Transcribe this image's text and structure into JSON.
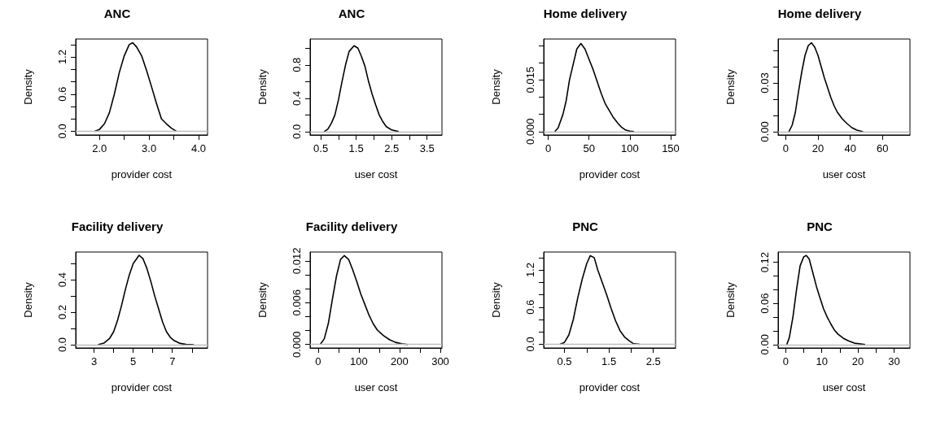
{
  "chart_data": [
    {
      "type": "line",
      "title": "ANC",
      "xlabel": "provider cost",
      "ylabel": "Density",
      "xlim": [
        1.52,
        4.18
      ],
      "ylim": [
        -0.06,
        1.49
      ],
      "xticks": [
        {
          "value": 2,
          "label": "2.0"
        },
        {
          "value": 2.5,
          "label": null
        },
        {
          "value": 3,
          "label": "3.0"
        },
        {
          "value": 3.5,
          "label": null
        },
        {
          "value": 4,
          "label": "4.0"
        }
      ],
      "yticks": [
        {
          "value": 0,
          "label": "0.0"
        },
        {
          "value": 0.2,
          "label": null
        },
        {
          "value": 0.4,
          "label": null
        },
        {
          "value": 0.6,
          "label": "0.6"
        },
        {
          "value": 0.8,
          "label": null
        },
        {
          "value": 1,
          "label": null
        },
        {
          "value": 1.2,
          "label": "1.2"
        },
        {
          "value": 1.4,
          "label": null
        }
      ],
      "x": [
        1.9,
        2.0,
        2.1,
        2.2,
        2.3,
        2.4,
        2.5,
        2.6,
        2.67,
        2.75,
        2.85,
        2.95,
        3.05,
        3.15,
        3.25,
        3.35,
        3.45,
        3.55
      ],
      "values": [
        0,
        0.03,
        0.12,
        0.3,
        0.6,
        0.95,
        1.22,
        1.4,
        1.43,
        1.36,
        1.22,
        0.98,
        0.72,
        0.45,
        0.2,
        0.12,
        0.05,
        0
      ],
      "color": "#000000",
      "ref_lines": [
        {
          "axis": "y",
          "value": 0,
          "color": "#bebebe"
        }
      ]
    },
    {
      "type": "line",
      "title": "ANC",
      "xlabel": "user cost",
      "ylabel": "Density",
      "xlim": [
        0.2,
        3.92
      ],
      "ylim": [
        -0.04,
        1.11
      ],
      "xticks": [
        0.5,
        {
          "value": 1,
          "label": null
        },
        1.5,
        {
          "value": 2,
          "label": null
        },
        2.5,
        {
          "value": 3,
          "label": null
        },
        3.5
      ],
      "yticks": [
        {
          "value": 0,
          "label": "0.0"
        },
        {
          "value": 0.2,
          "label": null
        },
        0.4,
        {
          "value": 0.6,
          "label": null
        },
        0.8,
        {
          "value": 1,
          "label": null
        }
      ],
      "x": [
        0.6,
        0.7,
        0.8,
        0.9,
        1.0,
        1.1,
        1.2,
        1.3,
        1.44,
        1.55,
        1.65,
        1.75,
        1.85,
        1.95,
        2.05,
        2.15,
        2.25,
        2.35,
        2.5,
        2.7
      ],
      "values": [
        0,
        0.03,
        0.1,
        0.2,
        0.38,
        0.6,
        0.8,
        0.96,
        1.03,
        1.0,
        0.9,
        0.78,
        0.6,
        0.45,
        0.32,
        0.2,
        0.12,
        0.06,
        0.02,
        0
      ],
      "color": "#000000",
      "ref_lines": [
        {
          "axis": "y",
          "value": 0,
          "color": "#bebebe"
        }
      ]
    },
    {
      "type": "line",
      "title": "Home delivery",
      "xlabel": "provider cost",
      "ylabel": "Density",
      "xlim": [
        -5.6,
        156
      ],
      "ylim": [
        -0.001,
        0.0269
      ],
      "xticks": [
        0,
        50,
        100,
        150
      ],
      "yticks": [
        {
          "value": 0,
          "label": "0.000"
        },
        {
          "value": 0.005,
          "label": null
        },
        {
          "value": 0.01,
          "label": null
        },
        0.015,
        {
          "value": 0.02,
          "label": null
        },
        {
          "value": 0.025,
          "label": null
        }
      ],
      "x": [
        8,
        12,
        18,
        22,
        26,
        30,
        35,
        40,
        45,
        50,
        55,
        60,
        65,
        70,
        75,
        80,
        85,
        90,
        95,
        100,
        105
      ],
      "values": [
        0,
        0.001,
        0.005,
        0.009,
        0.015,
        0.019,
        0.024,
        0.0256,
        0.024,
        0.021,
        0.018,
        0.0145,
        0.011,
        0.008,
        0.006,
        0.004,
        0.0025,
        0.0012,
        0.0004,
        0.0001,
        0
      ],
      "color": "#000000",
      "ref_lines": [
        {
          "axis": "y",
          "value": 0,
          "color": "#bebebe"
        }
      ]
    },
    {
      "type": "line",
      "title": "Home delivery",
      "xlabel": "user cost",
      "ylabel": "Density",
      "xlim": [
        -4.7,
        77
      ],
      "ylim": [
        -0.002,
        0.057
      ],
      "xticks": [
        0,
        20,
        40,
        60
      ],
      "yticks": [
        {
          "value": 0,
          "label": "0.00"
        },
        {
          "value": 0.01,
          "label": null
        },
        {
          "value": 0.02,
          "label": null
        },
        0.03,
        {
          "value": 0.04,
          "label": null
        },
        {
          "value": 0.05,
          "label": null
        }
      ],
      "x": [
        2,
        4,
        6,
        8,
        10,
        12,
        14,
        16,
        18,
        20,
        22,
        24,
        26,
        28,
        30,
        32,
        35,
        38,
        41,
        44,
        48
      ],
      "values": [
        0,
        0.004,
        0.012,
        0.025,
        0.037,
        0.047,
        0.053,
        0.0547,
        0.052,
        0.047,
        0.04,
        0.033,
        0.027,
        0.021,
        0.016,
        0.012,
        0.008,
        0.005,
        0.0025,
        0.001,
        0
      ],
      "color": "#000000",
      "ref_lines": [
        {
          "axis": "y",
          "value": 0,
          "color": "#bebebe"
        }
      ]
    },
    {
      "type": "line",
      "title": "Facility delivery",
      "xlabel": "provider cost",
      "ylabel": "Density",
      "xlim": [
        2.06,
        8.8
      ],
      "ylim": [
        -0.02,
        0.571
      ],
      "xticks": [
        3,
        {
          "value": 4,
          "label": null
        },
        5,
        {
          "value": 6,
          "label": null
        },
        7,
        {
          "value": 8,
          "label": null
        }
      ],
      "yticks": [
        {
          "value": 0,
          "label": "0.0"
        },
        {
          "value": 0.1,
          "label": null
        },
        0.2,
        {
          "value": 0.3,
          "label": null
        },
        0.4,
        {
          "value": 0.5,
          "label": null
        }
      ],
      "x": [
        3.2,
        3.5,
        3.8,
        4.0,
        4.2,
        4.4,
        4.6,
        4.8,
        5.0,
        5.3,
        5.5,
        5.7,
        5.9,
        6.1,
        6.3,
        6.5,
        6.7,
        6.9,
        7.1,
        7.4,
        7.7,
        8.1
      ],
      "values": [
        0,
        0.01,
        0.04,
        0.08,
        0.15,
        0.24,
        0.34,
        0.43,
        0.5,
        0.551,
        0.53,
        0.47,
        0.39,
        0.3,
        0.22,
        0.14,
        0.08,
        0.045,
        0.025,
        0.008,
        0.002,
        0
      ],
      "color": "#000000",
      "ref_lines": [
        {
          "axis": "y",
          "value": 0,
          "color": "#bebebe"
        }
      ]
    },
    {
      "type": "line",
      "title": "Facility delivery",
      "xlabel": "user cost",
      "ylabel": "Density",
      "xlim": [
        -19.7,
        304
      ],
      "ylim": [
        -0.0005,
        0.01327
      ],
      "xticks": [
        0,
        {
          "value": 50,
          "label": null
        },
        100,
        {
          "value": 150,
          "label": null
        },
        200,
        {
          "value": 250,
          "label": null
        },
        300
      ],
      "yticks": [
        {
          "value": 0,
          "label": "0.000"
        },
        {
          "value": 0.002,
          "label": null
        },
        {
          "value": 0.004,
          "label": null
        },
        0.006,
        {
          "value": 0.008,
          "label": null
        },
        {
          "value": 0.01,
          "label": null
        },
        0.012
      ],
      "x": [
        5,
        15,
        25,
        35,
        45,
        55,
        64,
        75,
        85,
        95,
        105,
        115,
        125,
        135,
        145,
        160,
        175,
        190,
        205,
        220
      ],
      "values": [
        0,
        0.0008,
        0.003,
        0.0065,
        0.0098,
        0.0122,
        0.01275,
        0.0122,
        0.0107,
        0.009,
        0.0072,
        0.0057,
        0.0042,
        0.003,
        0.0021,
        0.0013,
        0.0007,
        0.0003,
        0.0001,
        0
      ],
      "color": "#000000",
      "ref_lines": [
        {
          "axis": "y",
          "value": 0,
          "color": "#bebebe"
        }
      ]
    },
    {
      "type": "line",
      "title": "PNC",
      "xlabel": "provider cost",
      "ylabel": "Density",
      "xlim": [
        0.034,
        3.0
      ],
      "ylim": [
        -0.06,
        1.49
      ],
      "xticks": [
        0.5,
        {
          "value": 1,
          "label": null
        },
        1.5,
        {
          "value": 2,
          "label": null
        },
        2.5
      ],
      "yticks": [
        {
          "value": 0,
          "label": "0.0"
        },
        {
          "value": 0.2,
          "label": null
        },
        {
          "value": 0.4,
          "label": null
        },
        0.6,
        {
          "value": 0.8,
          "label": null
        },
        {
          "value": 1,
          "label": null
        },
        1.2,
        {
          "value": 1.4,
          "label": null
        }
      ],
      "x": [
        0.4,
        0.5,
        0.6,
        0.7,
        0.8,
        0.9,
        1.0,
        1.08,
        1.17,
        1.25,
        1.35,
        1.45,
        1.55,
        1.65,
        1.75,
        1.85,
        1.95,
        2.05,
        2.2
      ],
      "values": [
        0,
        0.03,
        0.15,
        0.4,
        0.75,
        1.05,
        1.3,
        1.43,
        1.4,
        1.2,
        1.0,
        0.8,
        0.58,
        0.38,
        0.22,
        0.12,
        0.06,
        0.01,
        0
      ],
      "color": "#000000",
      "ref_lines": [
        {
          "axis": "y",
          "value": 0,
          "color": "#bebebe"
        }
      ]
    },
    {
      "type": "line",
      "title": "PNC",
      "xlabel": "user cost",
      "ylabel": "Density",
      "xlim": [
        -2.1,
        34.4
      ],
      "ylim": [
        -0.005,
        0.135
      ],
      "xticks": [
        0,
        {
          "value": 5,
          "label": null
        },
        10,
        {
          "value": 15,
          "label": null
        },
        20,
        {
          "value": 25,
          "label": null
        },
        30
      ],
      "yticks": [
        {
          "value": 0,
          "label": "0.00"
        },
        {
          "value": 0.02,
          "label": null
        },
        {
          "value": 0.04,
          "label": null
        },
        0.06,
        {
          "value": 0.08,
          "label": null
        },
        {
          "value": 0.1,
          "label": null
        },
        0.12
      ],
      "x": [
        0.3,
        1,
        2,
        3,
        4,
        5,
        5.7,
        6.5,
        7.5,
        8.5,
        9.5,
        10.5,
        11.5,
        12.5,
        13.5,
        14.5,
        16,
        17.5,
        19,
        22
      ],
      "values": [
        0,
        0.01,
        0.04,
        0.08,
        0.115,
        0.128,
        0.13,
        0.125,
        0.105,
        0.085,
        0.068,
        0.052,
        0.04,
        0.03,
        0.021,
        0.015,
        0.009,
        0.005,
        0.002,
        0
      ],
      "color": "#000000",
      "ref_lines": [
        {
          "axis": "y",
          "value": 0,
          "color": "#bebebe"
        }
      ]
    }
  ]
}
